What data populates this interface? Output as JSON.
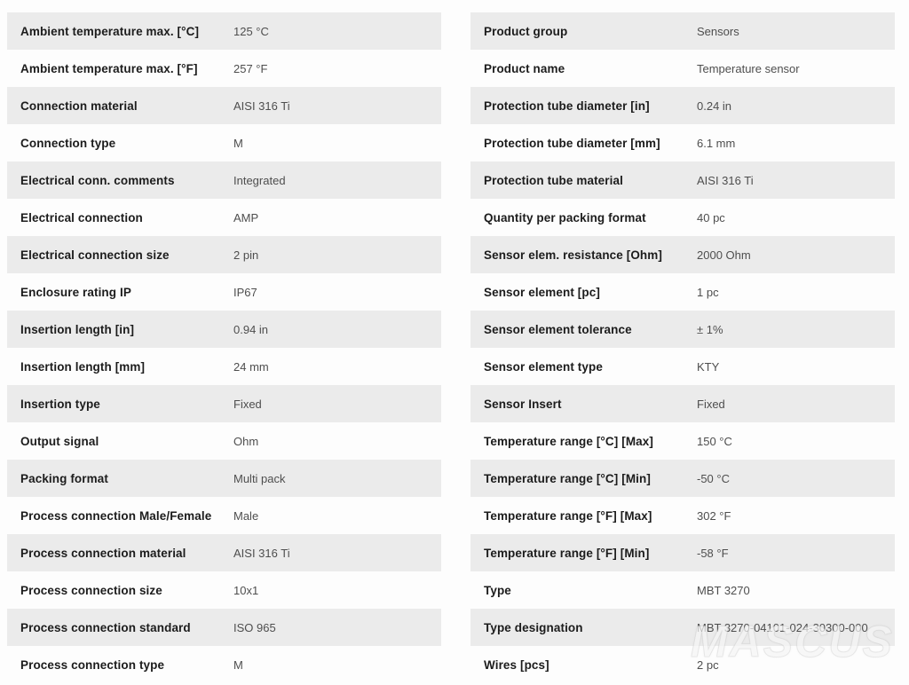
{
  "colors": {
    "page_background": "#fdfdfd",
    "row_shaded": "#ebebeb",
    "label_text": "#1c1c1c",
    "value_text": "#4e4e4e"
  },
  "watermark": "MASCUS",
  "tables": {
    "left": {
      "rows": [
        {
          "label": "Ambient temperature max. [°C]",
          "value": "125 °C"
        },
        {
          "label": "Ambient temperature max. [°F]",
          "value": "257 °F"
        },
        {
          "label": "Connection material",
          "value": "AISI 316 Ti"
        },
        {
          "label": "Connection type",
          "value": "M"
        },
        {
          "label": "Electrical conn. comments",
          "value": "Integrated"
        },
        {
          "label": "Electrical connection",
          "value": "AMP"
        },
        {
          "label": "Electrical connection size",
          "value": "2 pin"
        },
        {
          "label": "Enclosure rating IP",
          "value": "IP67"
        },
        {
          "label": "Insertion length [in]",
          "value": "0.94 in"
        },
        {
          "label": "Insertion length [mm]",
          "value": "24 mm"
        },
        {
          "label": "Insertion type",
          "value": "Fixed"
        },
        {
          "label": "Output signal",
          "value": "Ohm"
        },
        {
          "label": "Packing format",
          "value": "Multi pack"
        },
        {
          "label": "Process connection Male/Female",
          "value": "Male"
        },
        {
          "label": "Process connection material",
          "value": "AISI 316 Ti"
        },
        {
          "label": "Process connection size",
          "value": "10x1"
        },
        {
          "label": "Process connection standard",
          "value": "ISO 965"
        },
        {
          "label": "Process connection type",
          "value": "M"
        }
      ]
    },
    "right": {
      "rows": [
        {
          "label": "Product group",
          "value": "Sensors"
        },
        {
          "label": "Product name",
          "value": "Temperature sensor"
        },
        {
          "label": "Protection tube diameter [in]",
          "value": "0.24 in"
        },
        {
          "label": "Protection tube diameter [mm]",
          "value": "6.1 mm"
        },
        {
          "label": "Protection tube material",
          "value": "AISI 316 Ti"
        },
        {
          "label": "Quantity per packing format",
          "value": "40 pc"
        },
        {
          "label": "Sensor elem. resistance [Ohm]",
          "value": "2000 Ohm"
        },
        {
          "label": "Sensor element [pc]",
          "value": "1 pc"
        },
        {
          "label": "Sensor element tolerance",
          "value": "± 1%"
        },
        {
          "label": "Sensor element type",
          "value": "KTY"
        },
        {
          "label": "Sensor Insert",
          "value": "Fixed"
        },
        {
          "label": "Temperature range [°C] [Max]",
          "value": "150 °C"
        },
        {
          "label": "Temperature range [°C] [Min]",
          "value": "-50 °C"
        },
        {
          "label": "Temperature range [°F] [Max]",
          "value": "302 °F"
        },
        {
          "label": "Temperature range [°F] [Min]",
          "value": "-58 °F"
        },
        {
          "label": "Type",
          "value": "MBT 3270"
        },
        {
          "label": "Type designation",
          "value": "MBT 3270-04101-024-30300-000"
        },
        {
          "label": "Wires [pcs]",
          "value": "2 pc"
        }
      ]
    }
  }
}
